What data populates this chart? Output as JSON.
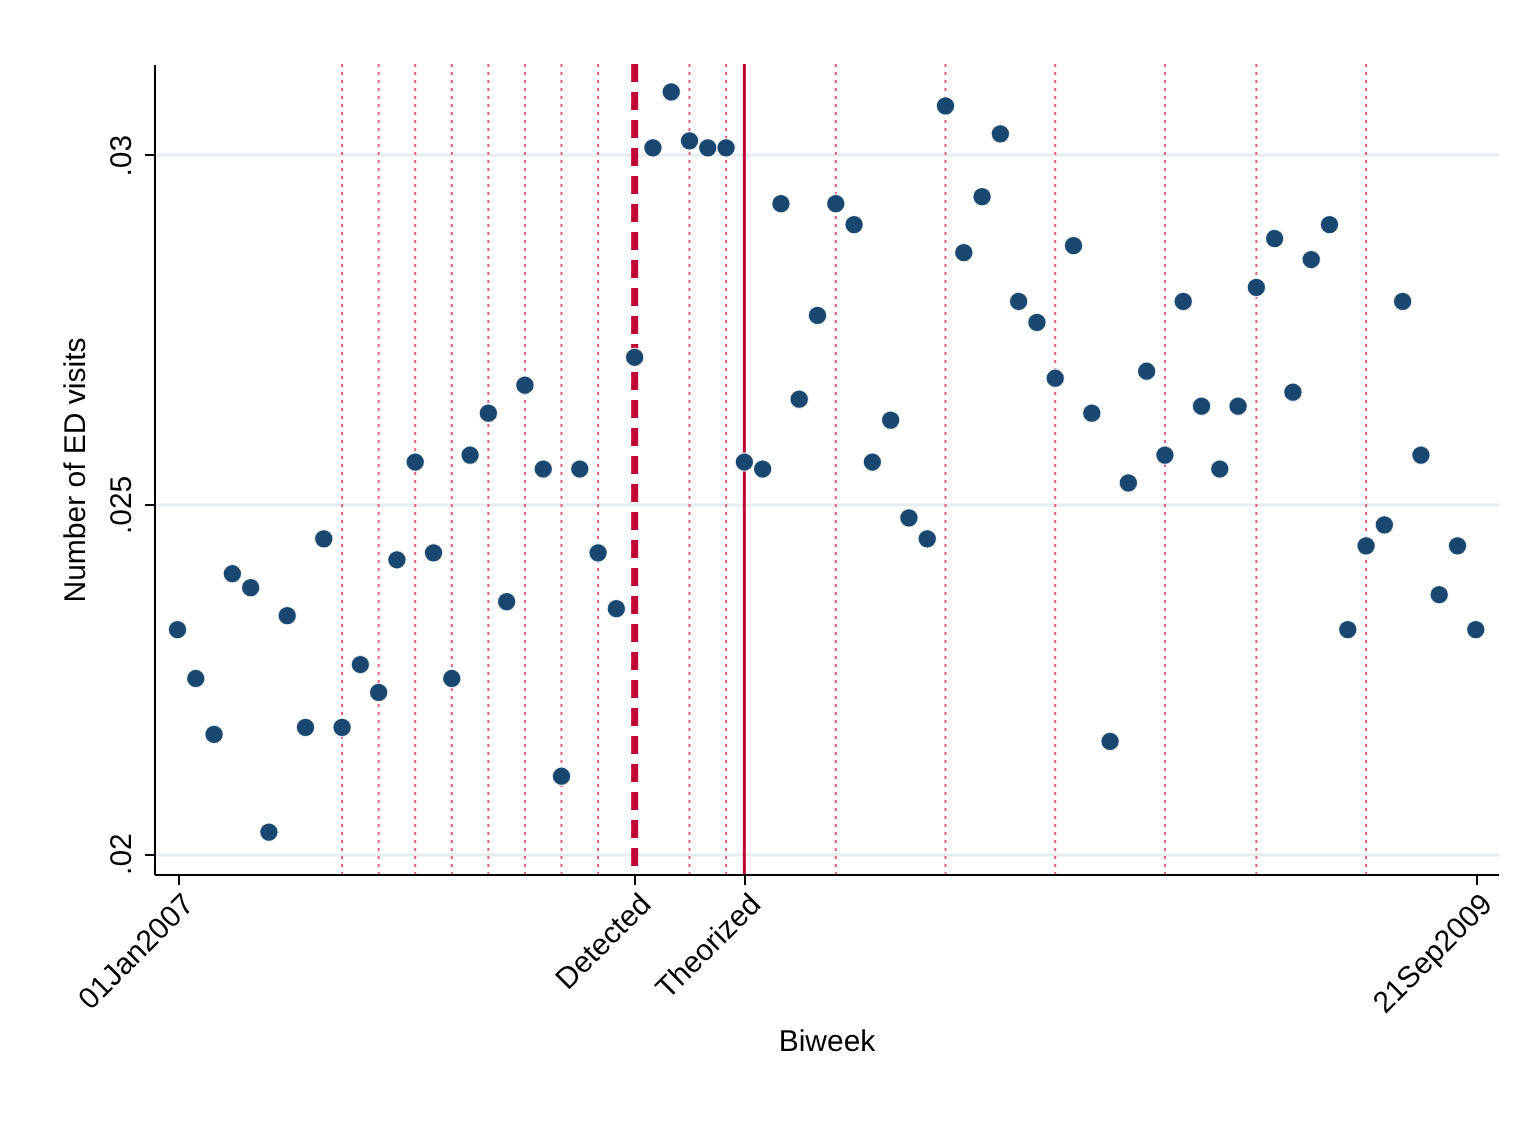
{
  "chart_data": {
    "type": "scatter",
    "xlabel": "Biweek",
    "ylabel": "Number of ED visits",
    "x": [
      "2007-01-01",
      "2007-01-15",
      "2007-01-29",
      "2007-02-12",
      "2007-02-26",
      "2007-03-12",
      "2007-03-26",
      "2007-04-09",
      "2007-04-23",
      "2007-05-07",
      "2007-05-21",
      "2007-06-04",
      "2007-06-18",
      "2007-07-02",
      "2007-07-16",
      "2007-07-30",
      "2007-08-13",
      "2007-08-27",
      "2007-09-10",
      "2007-09-24",
      "2007-10-08",
      "2007-10-22",
      "2007-11-05",
      "2007-11-19",
      "2007-12-03",
      "2007-12-17",
      "2007-12-31",
      "2008-01-14",
      "2008-01-28",
      "2008-02-11",
      "2008-02-25",
      "2008-03-10",
      "2008-03-24",
      "2008-04-07",
      "2008-04-21",
      "2008-05-05",
      "2008-05-19",
      "2008-06-02",
      "2008-06-16",
      "2008-06-30",
      "2008-07-14",
      "2008-07-28",
      "2008-08-11",
      "2008-08-25",
      "2008-09-08",
      "2008-09-22",
      "2008-10-06",
      "2008-10-20",
      "2008-11-03",
      "2008-11-17",
      "2008-12-01",
      "2008-12-15",
      "2008-12-29",
      "2009-01-12",
      "2009-01-26",
      "2009-02-09",
      "2009-02-23",
      "2009-03-09",
      "2009-03-23",
      "2009-04-06",
      "2009-04-20",
      "2009-05-04",
      "2009-05-18",
      "2009-06-01",
      "2009-06-15",
      "2009-06-29",
      "2009-07-13",
      "2009-07-27",
      "2009-08-10",
      "2009-08-24",
      "2009-09-07",
      "2009-09-21"
    ],
    "series": [
      {
        "color": "#1a476f",
        "values": [
          0.0232,
          0.0225,
          0.0217,
          0.024,
          0.0238,
          0.0203,
          0.0234,
          0.0218,
          0.0245,
          0.0218,
          0.0227,
          0.0223,
          0.0242,
          0.0256,
          0.0243,
          0.0225,
          0.0257,
          0.0263,
          0.0236,
          0.0267,
          0.0255,
          0.0211,
          0.0255,
          0.0243,
          0.0235,
          0.0271,
          0.0301,
          0.0309,
          0.0302,
          0.0301,
          0.0301,
          0.0256,
          0.0255,
          0.0293,
          0.0265,
          0.0277,
          0.0293,
          0.029,
          0.0256,
          0.0262,
          0.0248,
          0.0245,
          0.0307,
          0.0286,
          0.0294,
          0.0303,
          0.0279,
          0.0276,
          0.0268,
          0.0287,
          0.0263,
          0.0216,
          0.0253,
          0.0269,
          0.0257,
          0.0279,
          0.0264,
          0.0255,
          0.0264,
          0.0281,
          0.0288,
          0.0266,
          0.0285,
          0.029,
          0.0232,
          0.0244,
          0.0247,
          0.0279,
          0.0257,
          0.0237,
          0.0244,
          0.0232
        ]
      }
    ],
    "xlim": [
      "2006-12-14",
      "2009-10-08"
    ],
    "xticks": [
      {
        "value": "2007-01-01",
        "label": "01Jan2007"
      },
      {
        "value": "2007-12-17",
        "label": "Detected"
      },
      {
        "value": "2008-03-10",
        "label": "Theorized"
      },
      {
        "value": "2009-09-21",
        "label": "21Sep2009"
      }
    ],
    "ylim": [
      0.0197,
      0.0313
    ],
    "yticks": [
      {
        "value": 0.02,
        "label": ".02"
      },
      {
        "value": 0.025,
        "label": ".025"
      },
      {
        "value": 0.03,
        "label": ".03"
      }
    ],
    "grid": "y",
    "marker": "circle",
    "ref_lines": [
      {
        "axis": "x",
        "value": "2007-05-07",
        "label": null,
        "color": "#e0607c",
        "line_style": "dotted"
      },
      {
        "axis": "x",
        "value": "2007-06-04",
        "label": null,
        "color": "#e0607c",
        "line_style": "dotted"
      },
      {
        "axis": "x",
        "value": "2007-07-02",
        "label": null,
        "color": "#e0607c",
        "line_style": "dotted"
      },
      {
        "axis": "x",
        "value": "2007-07-30",
        "label": null,
        "color": "#e0607c",
        "line_style": "dotted"
      },
      {
        "axis": "x",
        "value": "2007-08-27",
        "label": null,
        "color": "#e0607c",
        "line_style": "dotted"
      },
      {
        "axis": "x",
        "value": "2007-09-24",
        "label": null,
        "color": "#e0607c",
        "line_style": "dotted"
      },
      {
        "axis": "x",
        "value": "2007-10-22",
        "label": null,
        "color": "#e0607c",
        "line_style": "dotted"
      },
      {
        "axis": "x",
        "value": "2007-11-19",
        "label": null,
        "color": "#e0607c",
        "line_style": "dotted"
      },
      {
        "axis": "x",
        "value": "2007-12-17",
        "label": null,
        "color": "#c10534",
        "line_style": "dashed"
      },
      {
        "axis": "x",
        "value": "2008-01-28",
        "label": null,
        "color": "#e0607c",
        "line_style": "dotted"
      },
      {
        "axis": "x",
        "value": "2008-02-25",
        "label": null,
        "color": "#e0607c",
        "line_style": "dotted"
      },
      {
        "axis": "x",
        "value": "2008-03-10",
        "label": null,
        "color": "#c10534",
        "line_style": "solid"
      },
      {
        "axis": "x",
        "value": "2008-05-19",
        "label": null,
        "color": "#e0607c",
        "line_style": "dotted"
      },
      {
        "axis": "x",
        "value": "2008-08-11",
        "label": null,
        "color": "#e0607c",
        "line_style": "dotted"
      },
      {
        "axis": "x",
        "value": "2008-11-03",
        "label": null,
        "color": "#e0607c",
        "line_style": "dotted"
      },
      {
        "axis": "x",
        "value": "2009-01-26",
        "label": null,
        "color": "#e0607c",
        "line_style": "dotted"
      },
      {
        "axis": "x",
        "value": "2009-04-06",
        "label": null,
        "color": "#e0607c",
        "line_style": "dotted"
      },
      {
        "axis": "x",
        "value": "2009-06-29",
        "label": null,
        "color": "#e0607c",
        "line_style": "dotted"
      }
    ]
  }
}
